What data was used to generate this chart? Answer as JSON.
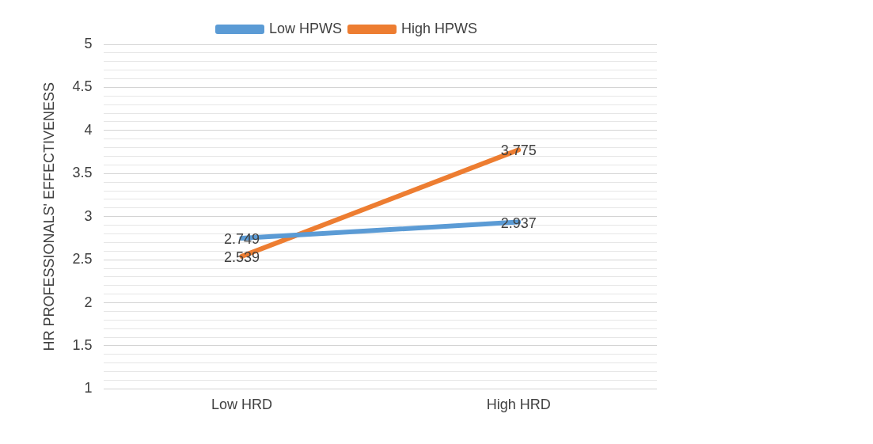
{
  "chart_data": {
    "type": "line",
    "ylabel": "HR PROFESSIONALS' EFFECTIVENESS",
    "categories": [
      "Low HRD",
      "High HRD"
    ],
    "series": [
      {
        "name": "Low HPWS",
        "color": "#5b9bd5",
        "values": [
          2.749,
          2.937
        ]
      },
      {
        "name": "High HPWS",
        "color": "#ed7d31",
        "values": [
          2.539,
          3.775
        ]
      }
    ],
    "ylim": [
      1,
      5
    ],
    "yticks": [
      1,
      {
        "value": 1.1,
        "label": null
      },
      {
        "value": 1.2,
        "label": null
      },
      {
        "value": 1.3,
        "label": null
      },
      {
        "value": 1.4,
        "label": null
      },
      {
        "value": 1.5,
        "label": "1.5"
      },
      {
        "value": 1.6,
        "label": null
      },
      {
        "value": 1.7,
        "label": null
      },
      {
        "value": 1.8,
        "label": null
      },
      {
        "value": 1.9,
        "label": null
      },
      2,
      {
        "value": 2.1,
        "label": null
      },
      {
        "value": 2.2,
        "label": null
      },
      {
        "value": 2.3,
        "label": null
      },
      {
        "value": 2.4,
        "label": null
      },
      {
        "value": 2.5,
        "label": "2.5"
      },
      {
        "value": 2.6,
        "label": null
      },
      {
        "value": 2.7,
        "label": null
      },
      {
        "value": 2.8,
        "label": null
      },
      {
        "value": 2.9,
        "label": null
      },
      3,
      {
        "value": 3.1,
        "label": null
      },
      {
        "value": 3.2,
        "label": null
      },
      {
        "value": 3.3,
        "label": null
      },
      {
        "value": 3.4,
        "label": null
      },
      {
        "value": 3.5,
        "label": "3.5"
      },
      {
        "value": 3.6,
        "label": null
      },
      {
        "value": 3.7,
        "label": null
      },
      {
        "value": 3.8,
        "label": null
      },
      {
        "value": 3.9,
        "label": null
      },
      4,
      {
        "value": 4.1,
        "label": null
      },
      {
        "value": 4.2,
        "label": null
      },
      {
        "value": 4.3,
        "label": null
      },
      {
        "value": 4.4,
        "label": null
      },
      {
        "value": 4.5,
        "label": "4.5"
      },
      {
        "value": 4.6,
        "label": null
      },
      {
        "value": 4.7,
        "label": null
      },
      {
        "value": 4.8,
        "label": null
      },
      {
        "value": 4.9,
        "label": null
      },
      5
    ],
    "grid": "y",
    "legend": "top",
    "marker": "none",
    "line_style": "solid",
    "data_labels": true
  }
}
